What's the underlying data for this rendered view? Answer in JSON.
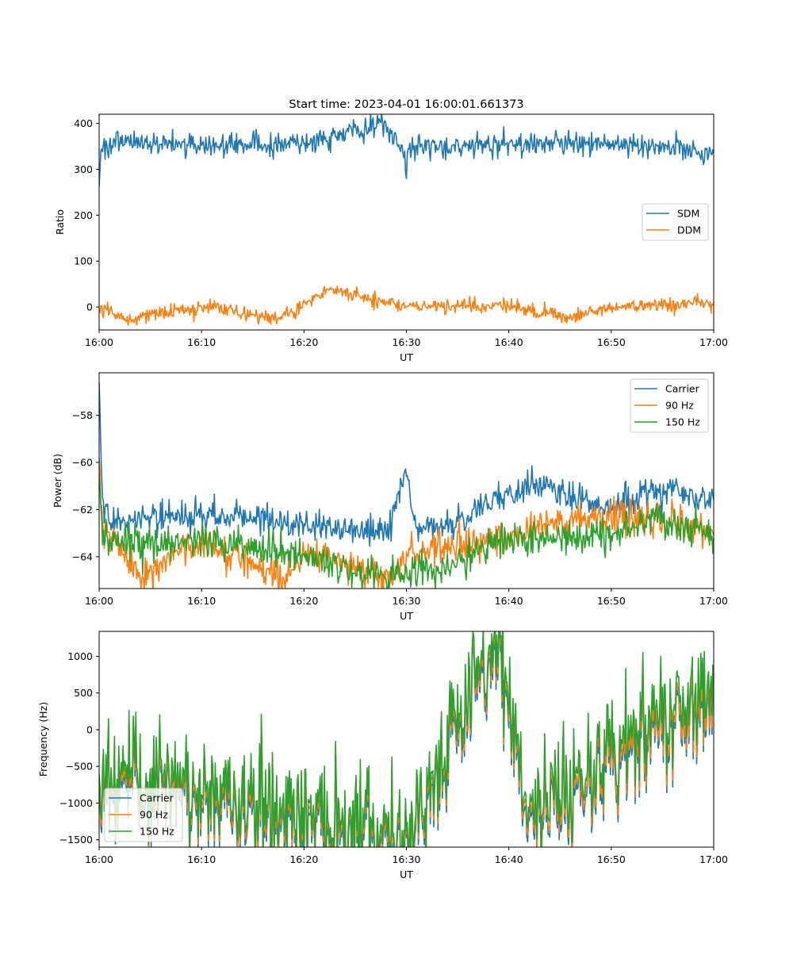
{
  "figure": {
    "title": "Start time: 2023-04-01 16:00:01.661373"
  },
  "colors": {
    "blue": "#1f77b4",
    "orange": "#ff7f0e",
    "green": "#2ca02c"
  },
  "chart_data": [
    {
      "type": "line",
      "title": "Start time: 2023-04-01 16:00:01.661373",
      "xlabel": "UT",
      "ylabel": "Ratio",
      "xlim": [
        "16:00",
        "17:00"
      ],
      "ylim": [
        -50,
        420
      ],
      "x_ticks": [
        "16:00",
        "16:10",
        "16:20",
        "16:30",
        "16:40",
        "16:50",
        "17:00"
      ],
      "y_ticks": [
        0,
        100,
        200,
        300,
        400
      ],
      "y_tick_labels": [
        "0",
        "100",
        "200",
        "300",
        "400"
      ],
      "legend": "center-right",
      "grid": false,
      "series": [
        {
          "name": "SDM",
          "color": "#1f77b4",
          "description": "noisy around 355, range ~320-400, start dip to 262, notch to 280 at 16:30",
          "x": [
            "16:00",
            "16:00:10",
            "16:01",
            "16:05",
            "16:10",
            "16:20",
            "16:27:30",
            "16:29:50",
            "16:30",
            "16:30:10",
            "16:40",
            "16:50",
            "17:00"
          ],
          "values": [
            262,
            340,
            355,
            360,
            352,
            355,
            402,
            340,
            280,
            345,
            357,
            355,
            335
          ]
        },
        {
          "name": "DDM",
          "color": "#ff7f0e",
          "description": "noisy around 0, range ~-25 to 38, spike 38 near 16:22:30",
          "x": [
            "16:00",
            "16:02:30",
            "16:10",
            "16:17:40",
            "16:22:30",
            "16:30",
            "16:40",
            "16:45:50",
            "16:50",
            "17:00"
          ],
          "values": [
            -5,
            -25,
            0,
            -27,
            38,
            0,
            2,
            -25,
            0,
            10
          ]
        }
      ]
    },
    {
      "type": "line",
      "title": "",
      "xlabel": "UT",
      "ylabel": "Power (dB)",
      "xlim": [
        "16:00",
        "17:00"
      ],
      "ylim": [
        -65.35,
        -56.2
      ],
      "x_ticks": [
        "16:00",
        "16:10",
        "16:20",
        "16:30",
        "16:40",
        "16:50",
        "17:00"
      ],
      "y_ticks": [
        -64,
        -62,
        -60,
        -58
      ],
      "y_tick_labels": [
        "−64",
        "−62",
        "−60",
        "−58"
      ],
      "legend": "top-right",
      "grid": false,
      "series": [
        {
          "name": "Carrier",
          "color": "#1f77b4",
          "description": "starts at -56.6, drops to ~-62.5, slight dip ~-63 at 16:25-16:32, spike -60.6 at 16:30, rises to ~-62 after 16:40",
          "x": [
            "16:00",
            "16:00:20",
            "16:01",
            "16:10",
            "16:20",
            "16:28",
            "16:30",
            "16:31",
            "16:35",
            "16:42:30",
            "16:50",
            "16:54:30",
            "17:00"
          ],
          "values": [
            -56.6,
            -61.5,
            -62.6,
            -62.2,
            -62.6,
            -63.0,
            -60.6,
            -62.8,
            -62.5,
            -60.9,
            -62.0,
            -61.1,
            -61.6
          ]
        },
        {
          "name": "90 Hz",
          "color": "#ff7f0e",
          "description": "starts -59.8, ~-63.5 noisy, dips ~-64.9, upward trend to ~-63 after 16:40",
          "x": [
            "16:00",
            "16:00:20",
            "16:04",
            "16:10",
            "16:18",
            "16:20",
            "16:28:30",
            "16:30",
            "16:40",
            "16:46",
            "16:55",
            "17:00"
          ],
          "values": [
            -59.8,
            -62.5,
            -64.9,
            -63.3,
            -64.9,
            -63.8,
            -64.8,
            -63.8,
            -63.2,
            -62.3,
            -62.4,
            -63.1
          ]
        },
        {
          "name": "150 Hz",
          "color": "#2ca02c",
          "description": "starts -60.7, ~-63.6 noisy, dips ~-64.8 near 16:25-16:35, rises to ~-63 after 16:40",
          "x": [
            "16:00",
            "16:00:20",
            "16:10",
            "16:20",
            "16:25",
            "16:33",
            "16:40",
            "16:50",
            "16:54",
            "17:00"
          ],
          "values": [
            -60.7,
            -63.5,
            -63.3,
            -63.9,
            -64.7,
            -64.6,
            -63.2,
            -63.1,
            -62.3,
            -63.2
          ]
        }
      ]
    },
    {
      "type": "line",
      "title": "",
      "xlabel": "UT",
      "ylabel": "Frequency (Hz)",
      "xlim": [
        "16:00",
        "17:00"
      ],
      "ylim": [
        -1600,
        1340
      ],
      "x_ticks": [
        "16:00",
        "16:10",
        "16:20",
        "16:30",
        "16:40",
        "16:50",
        "17:00"
      ],
      "y_ticks": [
        -1500,
        -1000,
        -500,
        0,
        500,
        1000
      ],
      "y_tick_labels": [
        "−1500",
        "−1000",
        "−500",
        "0",
        "500",
        "1000"
      ],
      "legend": "bottom-left",
      "grid": false,
      "series": [
        {
          "name": "Carrier",
          "color": "#1f77b4",
          "description": "highly noisy around 0, range ~-1000 to 1200, min -1470 at 16:30",
          "x": [
            "16:00",
            "16:30",
            "16:39",
            "16:42",
            "17:00"
          ],
          "values": [
            -700,
            -1470,
            1100,
            -1240,
            500
          ]
        },
        {
          "name": "90 Hz",
          "color": "#ff7f0e",
          "description": "tracks Carrier closely",
          "x": [
            "16:00",
            "16:30",
            "16:39",
            "16:42",
            "17:00"
          ],
          "values": [
            -650,
            -1420,
            1150,
            -1180,
            550
          ]
        },
        {
          "name": "150 Hz",
          "color": "#2ca02c",
          "description": "tracks Carrier closely, slightly higher",
          "x": [
            "16:00",
            "16:30",
            "16:39",
            "16:42",
            "17:00"
          ],
          "values": [
            -600,
            -1380,
            1200,
            -1120,
            680
          ]
        }
      ]
    }
  ]
}
